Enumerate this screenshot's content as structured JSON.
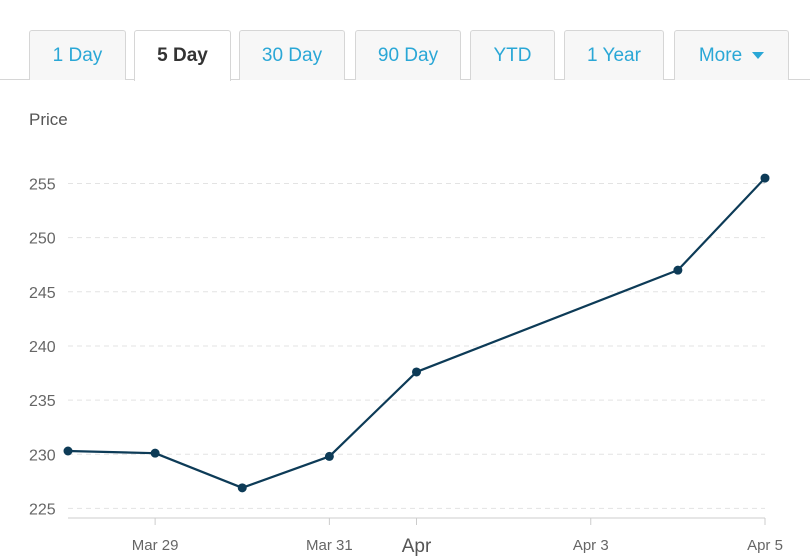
{
  "tabs": [
    {
      "label": "1 Day",
      "active": false
    },
    {
      "label": "5 Day",
      "active": true
    },
    {
      "label": "30 Day",
      "active": false
    },
    {
      "label": "90 Day",
      "active": false
    },
    {
      "label": "YTD",
      "active": false
    },
    {
      "label": "1 Year",
      "active": false
    },
    {
      "label": "More",
      "active": false,
      "dropdown": true,
      "icon": "caret-down-icon"
    }
  ],
  "chart_data": {
    "type": "line",
    "title": "",
    "ylabel": "Price",
    "xlabel": "",
    "ylim": [
      224,
      257
    ],
    "xlim": [
      0,
      8
    ],
    "yticks": [
      225,
      230,
      235,
      240,
      245,
      250,
      255
    ],
    "xticks": [
      {
        "x": 1,
        "label": "Mar 29",
        "major": false
      },
      {
        "x": 3,
        "label": "Mar 31",
        "major": false
      },
      {
        "x": 4,
        "label": "Apr",
        "major": true
      },
      {
        "x": 6,
        "label": "Apr 3",
        "major": false
      },
      {
        "x": 8,
        "label": "Apr 5",
        "major": false
      }
    ],
    "grid": true,
    "series": [
      {
        "name": "",
        "color": "#0d3b57",
        "points": [
          {
            "x": 0,
            "y": 230.3
          },
          {
            "x": 1,
            "y": 230.1
          },
          {
            "x": 2,
            "y": 226.9
          },
          {
            "x": 3,
            "y": 229.8
          },
          {
            "x": 4,
            "y": 237.6
          },
          {
            "x": 7,
            "y": 247.0
          },
          {
            "x": 8,
            "y": 255.5
          }
        ]
      }
    ]
  }
}
